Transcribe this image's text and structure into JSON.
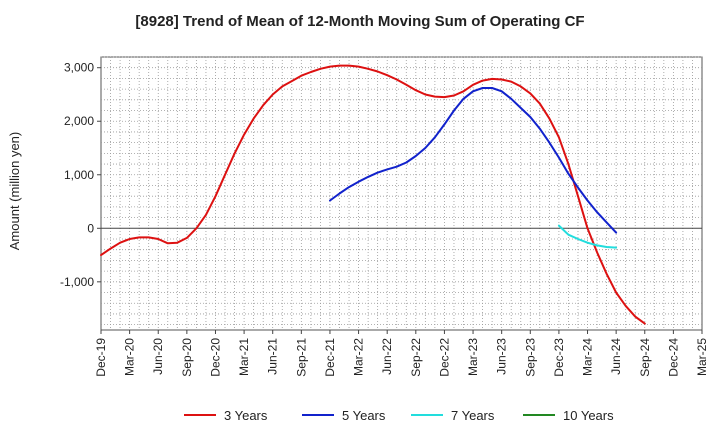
{
  "chart_data": {
    "type": "line",
    "title": "[8928]  Trend of Mean of 12-Month Moving Sum of Operating CF",
    "xlabel": "",
    "ylabel": "Amount (million yen)",
    "ylim": [
      -1900,
      3200
    ],
    "yticks": [
      -1000,
      0,
      1000,
      2000,
      3000
    ],
    "ytick_labels": [
      "-1,000",
      "0",
      "1,000",
      "2,000",
      "3,000"
    ],
    "x_start": "Dec-19",
    "x_months_total": 63,
    "xtick_labels": [
      "Dec-19",
      "Mar-20",
      "Jun-20",
      "Sep-20",
      "Dec-20",
      "Mar-21",
      "Jun-21",
      "Sep-21",
      "Dec-21",
      "Mar-22",
      "Jun-22",
      "Sep-22",
      "Dec-22",
      "Mar-23",
      "Jun-23",
      "Sep-23",
      "Dec-23",
      "Mar-24",
      "Jun-24",
      "Sep-24",
      "Dec-24",
      "Mar-25"
    ],
    "grid": true,
    "legend_position": "bottom",
    "series": [
      {
        "name": "3 Years",
        "color": "#dd1111",
        "start_month_index": 0,
        "values": [
          -500,
          -380,
          -270,
          -200,
          -170,
          -170,
          -200,
          -280,
          -270,
          -180,
          0,
          250,
          600,
          1000,
          1400,
          1750,
          2050,
          2300,
          2500,
          2650,
          2750,
          2850,
          2920,
          2980,
          3020,
          3040,
          3040,
          3020,
          2980,
          2930,
          2860,
          2780,
          2680,
          2580,
          2500,
          2460,
          2450,
          2480,
          2560,
          2680,
          2760,
          2790,
          2780,
          2740,
          2650,
          2520,
          2330,
          2050,
          1700,
          1200,
          600,
          0,
          -450,
          -850,
          -1200,
          -1450,
          -1650,
          -1780
        ]
      },
      {
        "name": "5 Years",
        "color": "#1122cc",
        "start_month_index": 24,
        "values": [
          520,
          650,
          770,
          870,
          960,
          1040,
          1100,
          1150,
          1230,
          1350,
          1500,
          1700,
          1940,
          2200,
          2420,
          2560,
          2620,
          2620,
          2560,
          2420,
          2250,
          2080,
          1860,
          1600,
          1320,
          1020,
          760,
          520,
          300,
          110,
          -80
        ]
      },
      {
        "name": "7 Years",
        "color": "#22dddd",
        "start_month_index": 48,
        "values": [
          50,
          -120,
          -200,
          -270,
          -320,
          -350,
          -360
        ]
      },
      {
        "name": "10 Years",
        "color": "#228822",
        "start_month_index": 0,
        "values": []
      }
    ]
  }
}
